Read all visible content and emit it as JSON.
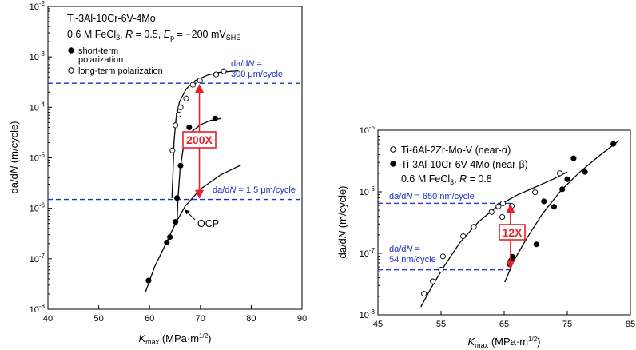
{
  "chart_data": [
    {
      "type": "scatter",
      "x_axis": {
        "ticks": [
          "40",
          "50",
          "60",
          "70",
          "80",
          "90"
        ],
        "label_main": "K",
        "label_sub": "max",
        "label_unit": "(MPa·m",
        "label_sup": "1/2",
        "label_close": ")",
        "xlim": [
          40,
          90
        ]
      },
      "y_axis": {
        "scale": "log",
        "ylim": [
          1e-08,
          0.01
        ],
        "tick_base": "10",
        "tick_exponents": [
          "-8",
          "-7",
          "-6",
          "-5",
          "-4",
          "-3",
          "-2"
        ],
        "label_a": "da/d",
        "label_b": "N",
        "label_c": " (m/cycle)"
      },
      "annotation": {
        "line1": "Ti-3Al-10Cr-6V-4Mo",
        "line2_a": "0.6 M FeCl",
        "line2_b": "3",
        "line2_c": ", ",
        "line2_d": "R",
        "line2_e": " = 0.5, ",
        "line2_f": "E",
        "line2_g": "p",
        "line2_h": " = −200 mV",
        "line2_i": "SHE"
      },
      "series": [
        {
          "name": "short-term polarization",
          "name_line1": "short-term",
          "name_line2": "polarization",
          "marker": "filled-circle",
          "points": [
            [
              59.8,
              3.7e-08
            ],
            [
              63.4,
              2.1e-07
            ],
            [
              64.0,
              2.7e-07
            ],
            [
              65.1,
              5.4e-07
            ],
            [
              65.4,
              1.6e-06
            ],
            [
              66.1,
              7e-06
            ],
            [
              67.0,
              2.2e-05
            ],
            [
              67.8,
              4e-05
            ],
            [
              72.9,
              6e-05
            ]
          ]
        },
        {
          "name": "long-term polarization",
          "marker": "open-circle",
          "points": [
            [
              64.5,
              1.4e-05
            ],
            [
              65.1,
              4.4e-05
            ],
            [
              65.7,
              7.2e-05
            ],
            [
              66.1,
              0.0001
            ],
            [
              67.2,
              0.00015
            ],
            [
              68.5,
              0.00028
            ],
            [
              69.9,
              0.00034
            ],
            [
              73.1,
              0.00045
            ],
            [
              74.6,
              0.00052
            ]
          ]
        }
      ],
      "reference_lines": [
        {
          "value": 0.0003,
          "label_line1_a": "da/d",
          "label_line1_b": "N",
          "label_line1_c": " =",
          "label_line2": "300 μm/cycle"
        },
        {
          "value": 1.5e-06,
          "label_a": "da/d",
          "label_b": "N",
          "label_c": " = 1.5 μm/cycle"
        }
      ],
      "ratio_label": "200X",
      "curve_label": "OCP",
      "colors": {
        "reference": "#1f2fbf",
        "ratio": "#e3242b"
      }
    },
    {
      "type": "scatter",
      "x_axis": {
        "ticks": [
          "45",
          "55",
          "65",
          "75",
          "85"
        ],
        "label_main": "K",
        "label_sub": "max",
        "label_unit": "(MPa·m",
        "label_sup": "1/2",
        "label_close": ")",
        "xlim": [
          45,
          85
        ]
      },
      "y_axis": {
        "scale": "log",
        "ylim": [
          1e-08,
          1e-05
        ],
        "tick_base": "10",
        "tick_exponents": [
          "-8",
          "-7",
          "-6",
          "-5"
        ],
        "label_a": "da/d",
        "label_b": "N",
        "label_c": " (m/cycle)"
      },
      "annotation": {
        "line_a": "0.6 M FeCl",
        "line_b": "3",
        "line_c": ", ",
        "line_d": "R",
        "line_e": " = 0.8"
      },
      "series": [
        {
          "name": "Ti-6Al-2Zr-Mo-V (near-α)",
          "marker": "open-circle",
          "points": [
            [
              52.3,
              2.2e-08
            ],
            [
              53.7,
              3.5e-08
            ],
            [
              55.0,
              5.4e-08
            ],
            [
              55.3,
              8.9e-08
            ],
            [
              58.5,
              1.9e-07
            ],
            [
              60.2,
              2.7e-07
            ],
            [
              63.0,
              4.7e-07
            ],
            [
              64.1,
              5.8e-07
            ],
            [
              64.7,
              3.9e-07
            ],
            [
              64.8,
              6.5e-07
            ],
            [
              66.2,
              5.9e-07
            ],
            [
              69.9,
              9.8e-07
            ],
            [
              73.8,
              2e-06
            ]
          ]
        },
        {
          "name": "Ti-3Al-10Cr-6V-4Mo (near-β)",
          "marker": "filled-circle",
          "points": [
            [
              65.9,
              6.6e-08
            ],
            [
              66.1,
              7.7e-08
            ],
            [
              66.3,
              8.8e-08
            ],
            [
              70.1,
              1.4e-07
            ],
            [
              71.3,
              7e-07
            ],
            [
              72.9,
              5.7e-07
            ],
            [
              74.2,
              1.1e-06
            ],
            [
              75.0,
              1.6e-06
            ],
            [
              76.0,
              3.5e-06
            ],
            [
              77.8,
              2.1e-06
            ],
            [
              82.3,
              6e-06
            ]
          ]
        }
      ],
      "reference_lines": [
        {
          "value": 6.5e-07,
          "label_a": "da/d",
          "label_b": "N",
          "label_c": " = 650 nm/cycle"
        },
        {
          "value": 5.4e-08,
          "label_line1_a": "da/d",
          "label_line1_b": "N",
          "label_line1_c": " =",
          "label_line2": "54 nm/cycle"
        }
      ],
      "ratio_label": "12X",
      "colors": {
        "reference": "#1f2fbf",
        "ratio": "#e3242b"
      }
    }
  ]
}
